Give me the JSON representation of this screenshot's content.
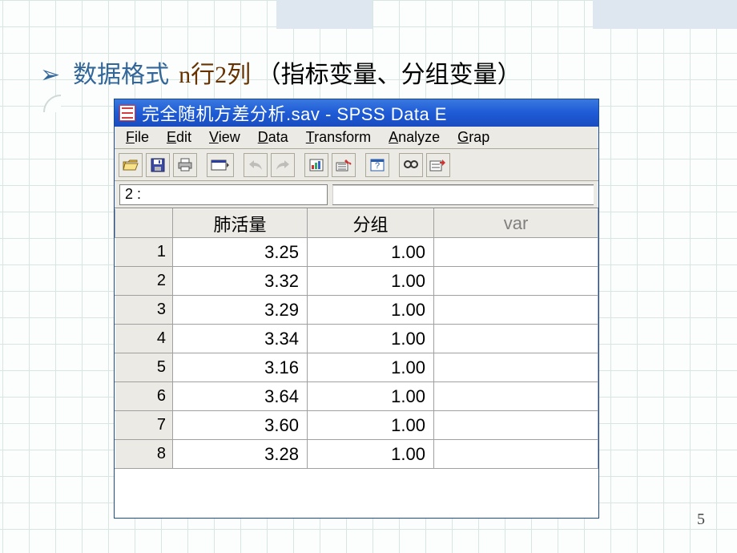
{
  "slide": {
    "bg_grid_color": "#d8e6e2",
    "bullet_arrow": "➢",
    "bullet_part1": "数据格式",
    "bullet_part2a": "n行2列",
    "bullet_part2b": "（指标变量、分组变量）",
    "page_number": "5",
    "accent_bands_color": "#dee6f0"
  },
  "spss": {
    "title_text": "完全随机方差分析.sav - SPSS Data E",
    "title_gradient": [
      "#3a78e0",
      "#1e5bd6",
      "#1a4cbf"
    ],
    "menus": [
      {
        "label": "File",
        "u": 0
      },
      {
        "label": "Edit",
        "u": 0
      },
      {
        "label": "View",
        "u": 0
      },
      {
        "label": "Data",
        "u": 0
      },
      {
        "label": "Transform",
        "u": 0
      },
      {
        "label": "Analyze",
        "u": 0
      },
      {
        "label": "Grap",
        "u": 0
      }
    ],
    "toolbar_icons": [
      "open",
      "save",
      "print",
      "|",
      "dialog-recall",
      "|",
      "undo",
      "redo",
      "|",
      "chart",
      "goto-case",
      "|",
      "help",
      "|",
      "find",
      "insert-case"
    ],
    "cell_indicator": "2 :",
    "columns": [
      {
        "key": "a",
        "label": "肺活量",
        "var": false
      },
      {
        "key": "b",
        "label": "分组",
        "var": false
      },
      {
        "key": "c",
        "label": "var",
        "var": true
      }
    ],
    "rows": [
      {
        "n": 1,
        "a": "3.25",
        "b": "1.00"
      },
      {
        "n": 2,
        "a": "3.32",
        "b": "1.00"
      },
      {
        "n": 3,
        "a": "3.29",
        "b": "1.00"
      },
      {
        "n": 4,
        "a": "3.34",
        "b": "1.00"
      },
      {
        "n": 5,
        "a": "3.16",
        "b": "1.00"
      },
      {
        "n": 6,
        "a": "3.64",
        "b": "1.00"
      },
      {
        "n": 7,
        "a": "3.60",
        "b": "1.00"
      },
      {
        "n": 8,
        "a": "3.28",
        "b": "1.00"
      }
    ],
    "header_bg": "#eceae4",
    "cell_border": "#a0a0a0",
    "var_text_color": "#808080"
  }
}
